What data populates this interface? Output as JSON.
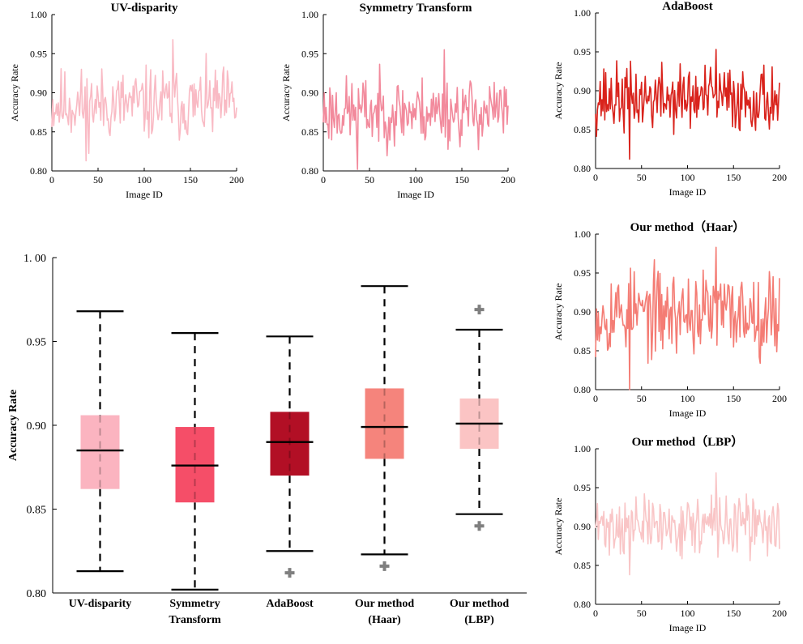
{
  "chart_data": [
    {
      "id": "uv",
      "type": "line",
      "title": "UV-disparity",
      "xlabel": "Image ID",
      "ylabel": "Accuracy Rate",
      "xlim": [
        0,
        200
      ],
      "ylim": [
        0.8,
        1.0
      ],
      "xticks": [
        "0",
        "50",
        "100",
        "150",
        "200"
      ],
      "yticks": [
        "0.80",
        "0.85",
        "0.90",
        "0.95",
        "1.00"
      ],
      "color": "#F9BAC4",
      "stats": {
        "min": 0.813,
        "max": 0.968,
        "mean": 0.885
      }
    },
    {
      "id": "sym",
      "type": "line",
      "title": "Symmetry Transform",
      "xlabel": "Image ID",
      "ylabel": "Accuracy Rate",
      "xlim": [
        0,
        200
      ],
      "ylim": [
        0.8,
        1.0
      ],
      "xticks": [
        "0",
        "50",
        "100",
        "150",
        "200"
      ],
      "yticks": [
        "0.80",
        "0.85",
        "0.90",
        "0.95",
        "1.00"
      ],
      "color": "#F28A9C",
      "stats": {
        "min": 0.802,
        "max": 0.955,
        "mean": 0.876
      }
    },
    {
      "id": "ada",
      "type": "line",
      "title": "AdaBoost",
      "xlabel": "Image ID",
      "ylabel": "Accuracy Rate",
      "xlim": [
        0,
        200
      ],
      "ylim": [
        0.8,
        1.0
      ],
      "xticks": [
        "0",
        "50",
        "100",
        "150",
        "200"
      ],
      "yticks": [
        "0.80",
        "0.85",
        "0.90",
        "0.95",
        "1.00"
      ],
      "color": "#D9231C",
      "stats": {
        "min": 0.812,
        "max": 0.953,
        "mean": 0.89
      }
    },
    {
      "id": "haar",
      "type": "line",
      "title": "Our method（Haar）",
      "xlabel": "Image ID",
      "ylabel": "Accuracy Rate",
      "xlim": [
        0,
        200
      ],
      "ylim": [
        0.8,
        1.0
      ],
      "xticks": [
        "0",
        "50",
        "100",
        "150",
        "200"
      ],
      "yticks": [
        "0.80",
        "0.85",
        "0.90",
        "0.95",
        "1.00"
      ],
      "color": "#F47C74",
      "stats": {
        "min": 0.8,
        "max": 0.983,
        "mean": 0.899
      }
    },
    {
      "id": "lbp",
      "type": "line",
      "title": "Our method（LBP）",
      "xlabel": "Image ID",
      "ylabel": "Accuracy Rate",
      "xlim": [
        0,
        200
      ],
      "ylim": [
        0.8,
        1.0
      ],
      "xticks": [
        "0",
        "50",
        "100",
        "150",
        "200"
      ],
      "yticks": [
        "0.80",
        "0.85",
        "0.90",
        "0.95",
        "1.00"
      ],
      "color": "#F9C5C6",
      "stats": {
        "min": 0.838,
        "max": 0.969,
        "mean": 0.901
      }
    },
    {
      "id": "box",
      "type": "box",
      "ylabel": "Accuracy Rate",
      "ylim": [
        0.8,
        1.0
      ],
      "yticks": [
        "0.80",
        "0.85",
        "0.90",
        "0.95",
        "1. 00"
      ],
      "categories": [
        {
          "label": [
            "UV-disparity"
          ],
          "color": "#FBB4C0",
          "whisker_low": 0.813,
          "q1": 0.862,
          "median": 0.885,
          "q3": 0.906,
          "whisker_high": 0.968,
          "outliers": []
        },
        {
          "label": [
            "Symmetry",
            "Transform"
          ],
          "color": "#F54E68",
          "whisker_low": 0.802,
          "q1": 0.854,
          "median": 0.876,
          "q3": 0.899,
          "whisker_high": 0.955,
          "outliers": []
        },
        {
          "label": [
            "AdaBoost"
          ],
          "color": "#B20F25",
          "whisker_low": 0.825,
          "q1": 0.87,
          "median": 0.89,
          "q3": 0.908,
          "whisker_high": 0.953,
          "outliers": [
            0.812
          ]
        },
        {
          "label": [
            "Our method",
            "(Haar)"
          ],
          "color": "#F5847C",
          "whisker_low": 0.823,
          "q1": 0.88,
          "median": 0.899,
          "q3": 0.922,
          "whisker_high": 0.983,
          "outliers": [
            0.816
          ]
        },
        {
          "label": [
            "Our method",
            "(LBP)"
          ],
          "color": "#FBC4C4",
          "whisker_low": 0.847,
          "q1": 0.886,
          "median": 0.901,
          "q3": 0.916,
          "whisker_high": 0.957,
          "outliers": [
            0.969,
            0.84
          ]
        }
      ]
    }
  ]
}
